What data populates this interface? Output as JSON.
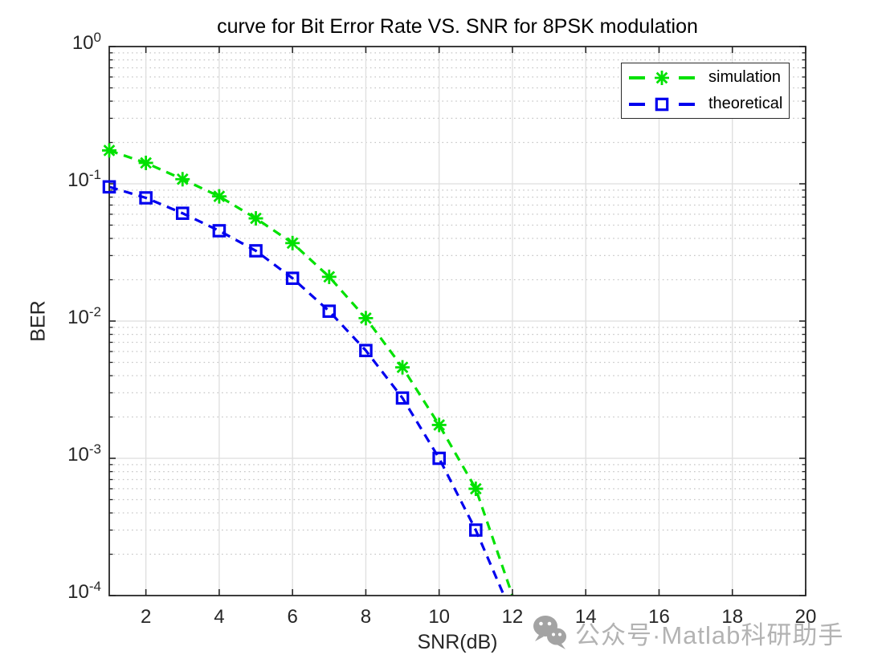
{
  "chart_data": {
    "type": "line",
    "title": "curve for Bit Error Rate VS. SNR for 8PSK modulation",
    "xlabel": "SNR(dB)",
    "ylabel": "BER",
    "x_scale": "linear",
    "y_scale": "log",
    "xlim": [
      1,
      20
    ],
    "ylim": [
      0.0001,
      1
    ],
    "x_ticks": [
      2,
      4,
      6,
      8,
      10,
      12,
      14,
      16,
      18,
      20
    ],
    "y_tick_base": "10",
    "y_tick_exponents": [
      0,
      -1,
      -2,
      -3,
      -4
    ],
    "grid": true,
    "minor_grid": true,
    "legend_position": "top-right-inside",
    "x": [
      1,
      2,
      3,
      4,
      5,
      6,
      7,
      8,
      9,
      10,
      11
    ],
    "series": [
      {
        "name": "simulation",
        "color": "#00e100",
        "marker": "asterisk",
        "linestyle": "dashed",
        "values": [
          0.175,
          0.142,
          0.108,
          0.081,
          0.056,
          0.037,
          0.021,
          0.0105,
          0.0046,
          0.00175,
          0.0006
        ],
        "tail": {
          "x": 12.0,
          "y": 0.0001
        }
      },
      {
        "name": "theoretical",
        "color": "#0000ee",
        "marker": "square",
        "linestyle": "dashed",
        "values": [
          0.095,
          0.079,
          0.061,
          0.0455,
          0.0325,
          0.0205,
          0.0118,
          0.0061,
          0.00275,
          0.001,
          0.0003
        ],
        "tail": {
          "x": 11.77,
          "y": 0.0001
        }
      }
    ]
  },
  "style": {
    "axis": "#262626",
    "grid_major": "#dedede",
    "grid_minor": "#c6c6c6",
    "background": "#ffffff"
  },
  "watermark": {
    "icon": "wechat-icon",
    "text": "公众号·Matlab科研助手",
    "color": "#b3b3b3"
  }
}
